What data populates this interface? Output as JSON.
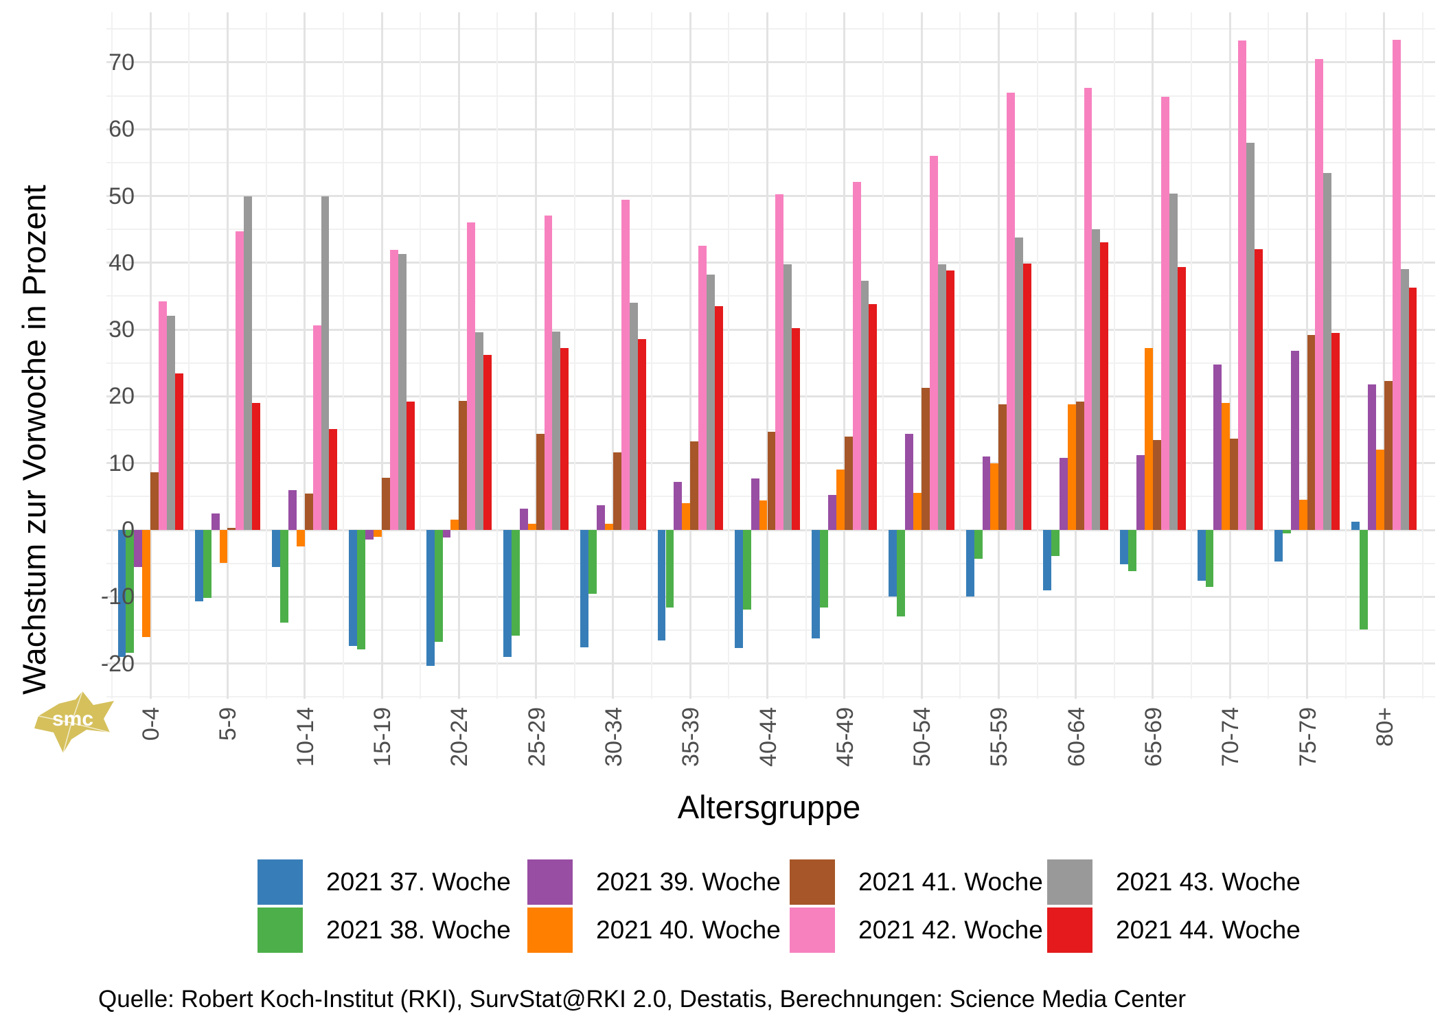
{
  "chart_data": {
    "type": "bar",
    "title": "",
    "xlabel": "Altersgruppe",
    "ylabel": "Wachstum zur Vorwoche in Prozent",
    "ylim": [
      -25.5,
      77
    ],
    "y_ticks": [
      70,
      60,
      50,
      40,
      30,
      20,
      10,
      0,
      -10,
      -20
    ],
    "grid": "on",
    "legend_position": "bottom",
    "categories": [
      "0-4",
      "5-9",
      "10-14",
      "15-19",
      "20-24",
      "25-29",
      "30-34",
      "35-39",
      "40-44",
      "45-49",
      "50-54",
      "55-59",
      "60-64",
      "65-69",
      "70-74",
      "75-79",
      "80+"
    ],
    "series": [
      {
        "name": "2021 37. Woche",
        "color": "#377EB8",
        "values": [
          -19.0,
          -10.7,
          -5.6,
          -17.4,
          -20.3,
          -19.0,
          -17.6,
          -16.5,
          -17.7,
          -16.2,
          -10.0,
          -10.0,
          -9.0,
          -5.1,
          -7.6,
          -4.7,
          1.2
        ]
      },
      {
        "name": "2021 38. Woche",
        "color": "#4DAF4A",
        "values": [
          -18.4,
          -10.2,
          -13.9,
          -17.9,
          -16.8,
          -15.8,
          -9.6,
          -11.6,
          -11.9,
          -11.6,
          -12.9,
          -4.3,
          -3.9,
          -6.2,
          -8.5,
          -0.5,
          -14.9
        ]
      },
      {
        "name": "2021 39. Woche",
        "color": "#984EA3",
        "values": [
          -5.5,
          2.5,
          6.0,
          -1.4,
          -1.1,
          3.2,
          3.7,
          7.2,
          7.7,
          5.2,
          14.4,
          11.0,
          10.8,
          11.2,
          24.8,
          26.8,
          21.8
        ]
      },
      {
        "name": "2021 40. Woche",
        "color": "#FF7F00",
        "values": [
          -16.0,
          -4.9,
          -2.5,
          -1.0,
          1.5,
          0.9,
          0.9,
          4.0,
          4.4,
          9.0,
          5.5,
          10.0,
          18.8,
          27.2,
          19.0,
          4.5,
          12.0
        ]
      },
      {
        "name": "2021 41. Woche",
        "color": "#A65628",
        "values": [
          8.6,
          0.3,
          5.4,
          7.8,
          19.3,
          14.4,
          11.6,
          13.3,
          14.7,
          14.0,
          21.3,
          18.8,
          19.2,
          13.5,
          13.7,
          29.2,
          22.3
        ]
      },
      {
        "name": "2021 42. Woche",
        "color": "#F781BF",
        "values": [
          34.2,
          44.7,
          30.6,
          41.9,
          46.0,
          47.1,
          49.4,
          42.6,
          50.3,
          52.1,
          56.0,
          65.5,
          66.2,
          64.9,
          73.3,
          70.5,
          73.4
        ]
      },
      {
        "name": "2021 43. Woche",
        "color": "#999999",
        "values": [
          32.1,
          49.9,
          49.9,
          41.3,
          29.6,
          29.7,
          34.0,
          38.2,
          39.8,
          37.3,
          39.8,
          43.8,
          45.0,
          50.4,
          58.0,
          53.4,
          39.1
        ]
      },
      {
        "name": "2021 44. Woche",
        "color": "#E41A1C",
        "values": [
          23.4,
          19.0,
          15.1,
          19.2,
          26.2,
          27.2,
          28.6,
          33.5,
          30.2,
          33.8,
          38.8,
          39.9,
          43.1,
          39.4,
          42.0,
          29.5,
          36.3
        ]
      }
    ]
  },
  "axes": {
    "y_title": "Wachstum zur Vorwoche in Prozent",
    "x_title": "Altersgruppe"
  },
  "legend": {
    "columns": [
      [
        "2021 37. Woche",
        "2021 38. Woche"
      ],
      [
        "2021 39. Woche",
        "2021 40. Woche"
      ],
      [
        "2021 41. Woche",
        "2021 42. Woche"
      ],
      [
        "2021 43. Woche",
        "2021 44. Woche"
      ]
    ]
  },
  "source_line": "Quelle: Robert Koch-Institut (RKI), SurvStat@RKI 2.0, Destatis, Berechnungen: Science Media Center",
  "logo": {
    "text": "smc",
    "color": "#d5c05c"
  },
  "style_colors": {
    "grid_major": "#e3e3e3",
    "grid_minor": "#f1f1f1",
    "tick_text": "#4d4d4d"
  }
}
